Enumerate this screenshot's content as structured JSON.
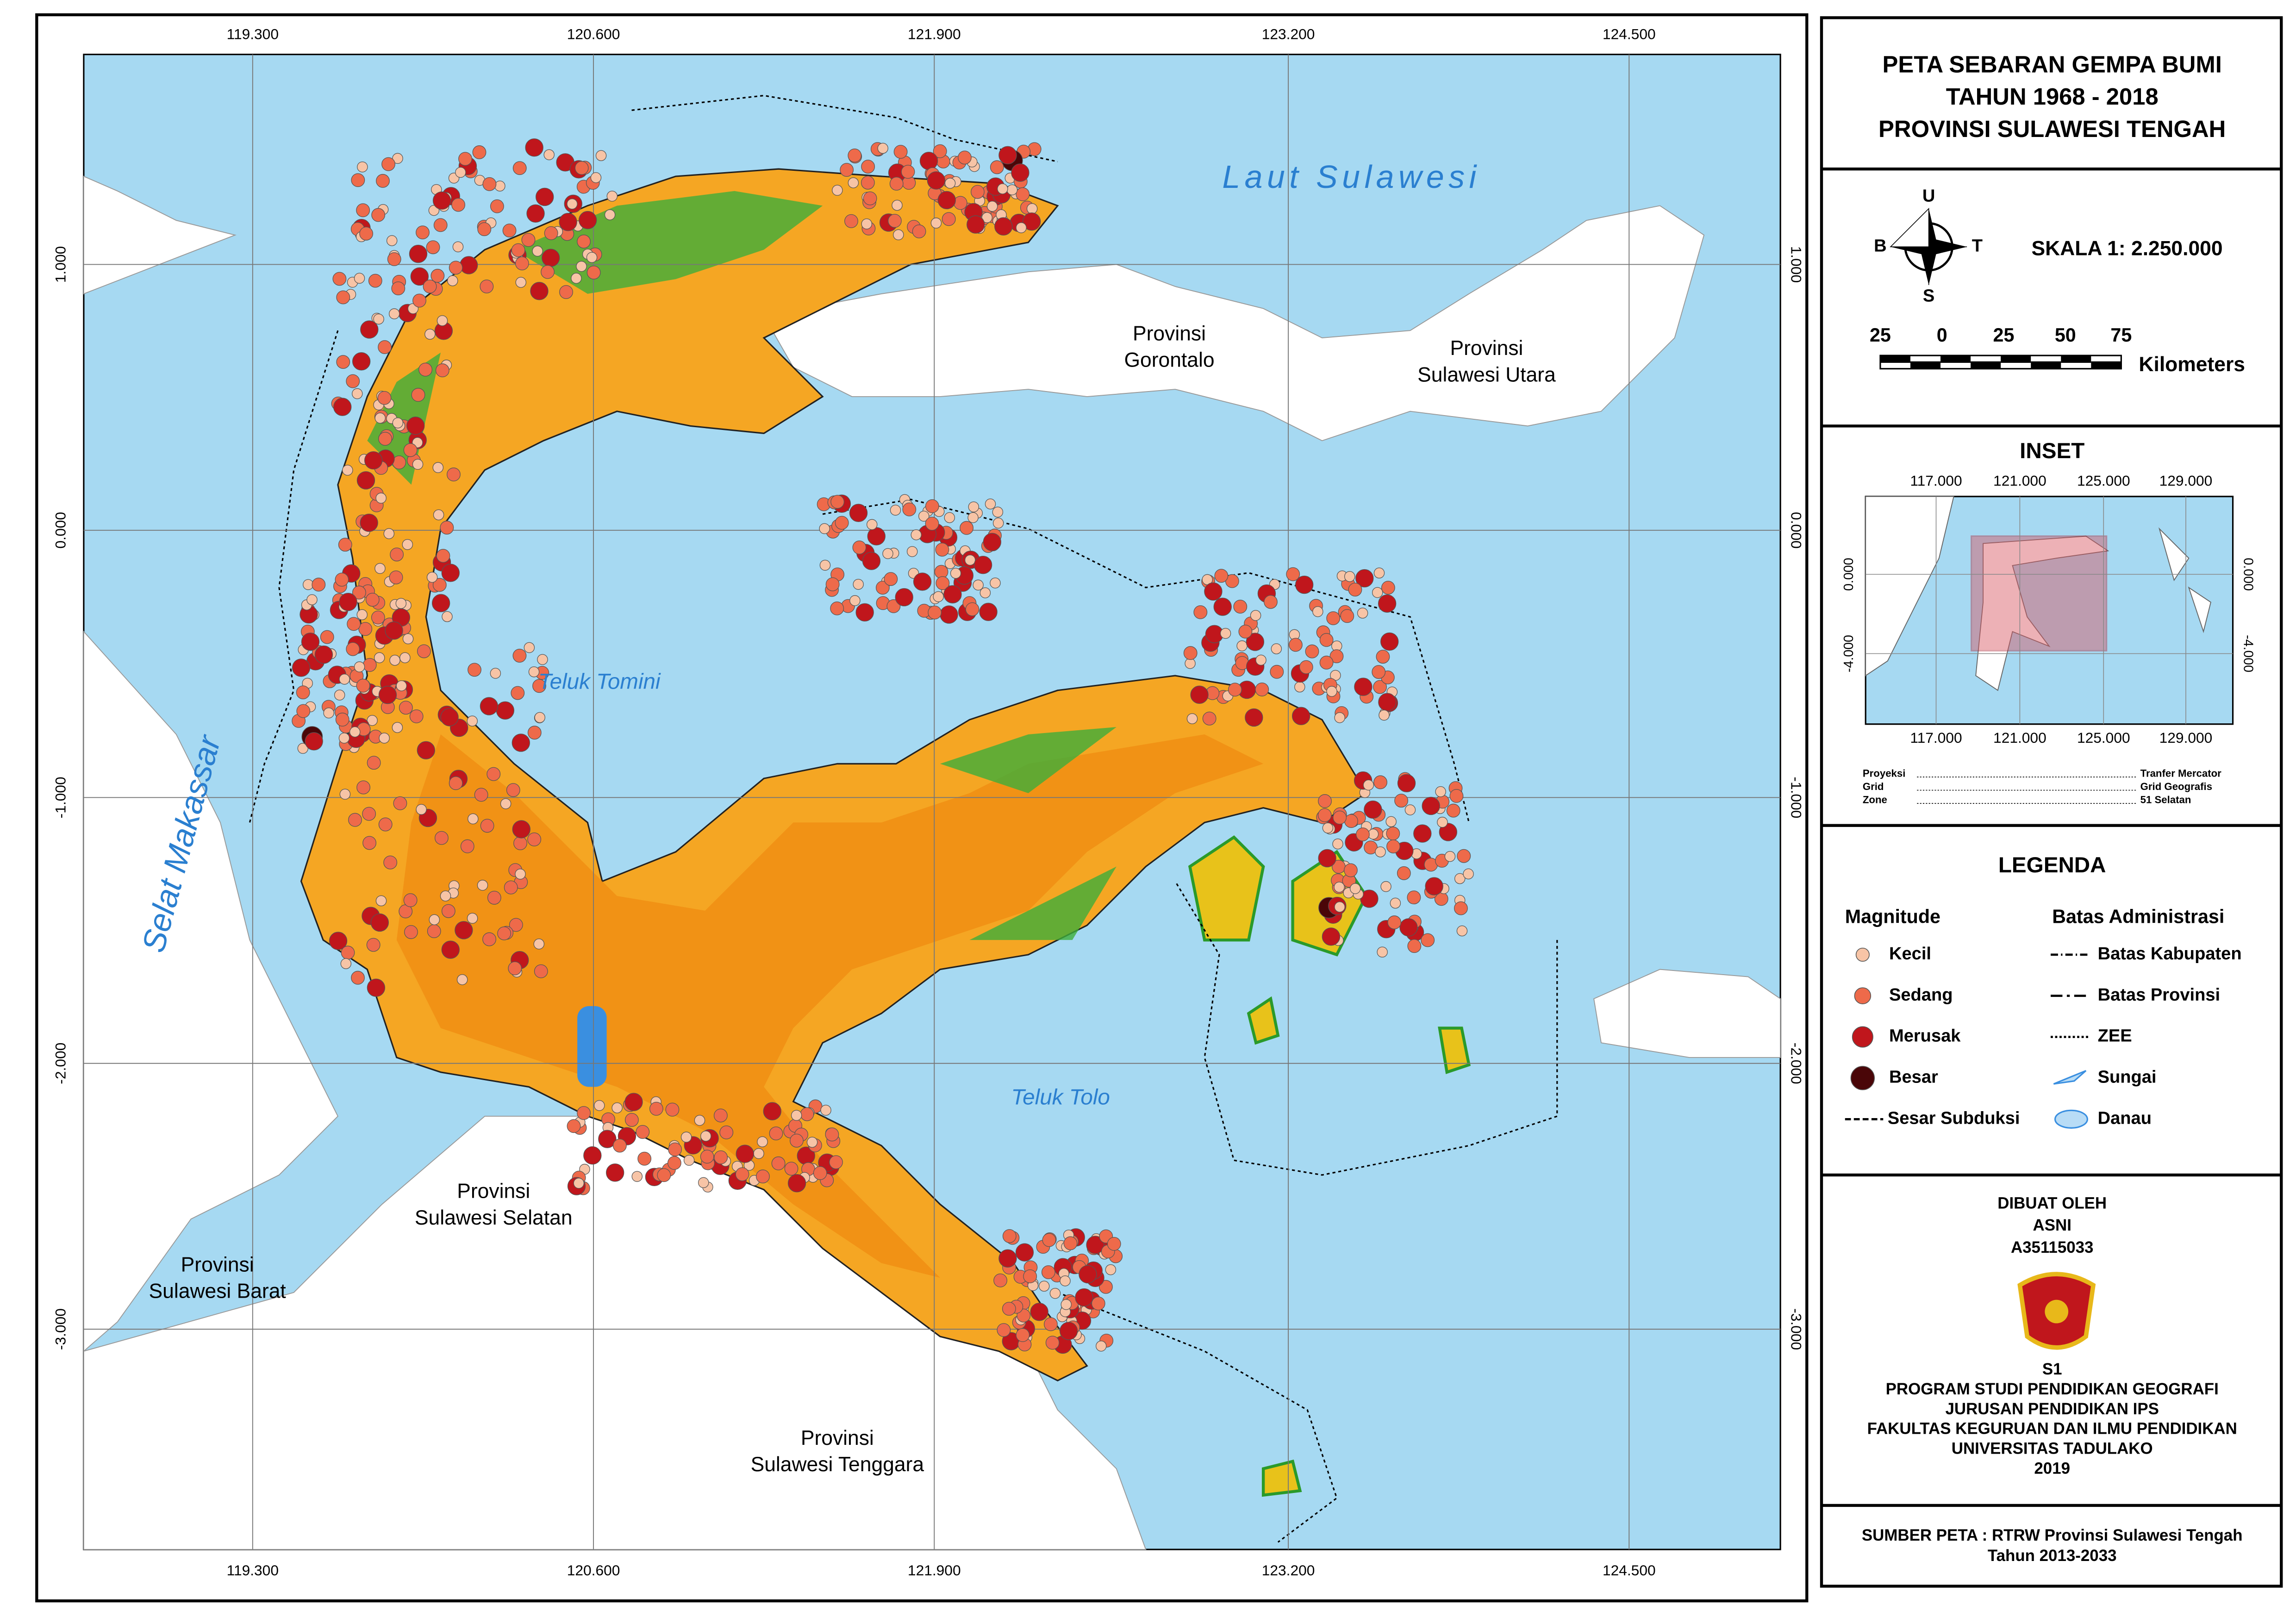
{
  "title": [
    "PETA SEBARAN GEMPA BUMI",
    "TAHUN 1968 - 2018",
    "PROVINSI SULAWESI TENGAH"
  ],
  "map": {
    "x_ticks": [
      "119.300",
      "120.600",
      "121.900",
      "123.200",
      "124.500"
    ],
    "y_ticks": [
      "1.000",
      "0.000",
      "-1.000",
      "-2.000",
      "-3.000"
    ],
    "sea_labels": [
      "Laut Sulawesi",
      "Selat Makassar",
      "Teluk Tomini",
      "Teluk Tolo"
    ],
    "province_labels": [
      [
        "Provinsi",
        "Gorontalo"
      ],
      [
        "Provinsi",
        "Sulawesi Utara"
      ],
      [
        "Provinsi",
        "Sulawesi Selatan"
      ],
      [
        "Provinsi",
        "Sulawesi Barat"
      ],
      [
        "Provinsi",
        "Sulawesi Tenggara"
      ]
    ]
  },
  "compass": {
    "n": "U",
    "s": "S",
    "e": "T",
    "w": "B"
  },
  "scale": {
    "text": "SKALA  1: 2.250.000",
    "ticks": [
      "25",
      "0",
      "25",
      "50",
      "75"
    ],
    "unit": "Kilometers"
  },
  "inset": {
    "title": "INSET",
    "x_ticks": [
      "117.000",
      "121.000",
      "125.000",
      "129.000"
    ],
    "y_ticks": [
      "0.000",
      "-4.000"
    ],
    "notes": [
      [
        "Proyeksi",
        "Tranfer Mercator"
      ],
      [
        "Grid",
        "Grid Geografis"
      ],
      [
        "Zone",
        "51 Selatan"
      ]
    ]
  },
  "legend": {
    "title": "LEGENDA",
    "magnitude_title": "Magnitude",
    "magnitude": [
      "Kecil",
      "Sedang",
      "Merusak",
      "Besar",
      "Sesar Subduksi"
    ],
    "admin_title": "Batas Administrasi",
    "admin": [
      "Batas Kabupaten",
      "Batas Provinsi",
      "ZEE",
      "Sungai",
      "Danau"
    ]
  },
  "credits": [
    "DIBUAT OLEH",
    "ASNI",
    "A35115033"
  ],
  "institution": [
    "S1",
    "PROGRAM STUDI PENDIDIKAN GEOGRAFI",
    "JURUSAN PENDIDIKAN IPS",
    "FAKULTAS KEGURUAN DAN ILMU PENDIDIKAN",
    "UNIVERSITAS TADULAKO",
    "2019"
  ],
  "source": [
    "SUMBER PETA : RTRW Provinsi Sulawesi Tengah",
    "Tahun 2013-2033"
  ]
}
